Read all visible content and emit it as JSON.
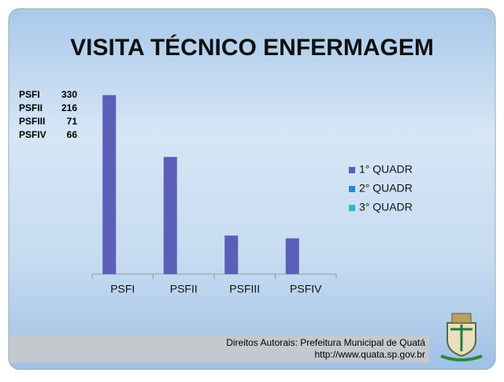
{
  "chart_data": {
    "type": "bar",
    "title": "VISITA TÉCNICO ENFERMAGEM",
    "categories": [
      "PSFI",
      "PSFII",
      "PSFIII",
      "PSFIV"
    ],
    "series": [
      {
        "name": "1° QUADR",
        "color": "#5b5fb8",
        "values": [
          330,
          216,
          71,
          66
        ]
      },
      {
        "name": "2° QUADR",
        "color": "#2f86d2",
        "values": [
          null,
          null,
          null,
          null
        ]
      },
      {
        "name": "3° QUADR",
        "color": "#2bb6d4",
        "values": [
          null,
          null,
          null,
          null
        ]
      }
    ],
    "ylim": [
      0,
      350
    ],
    "legend": "right"
  },
  "footer": {
    "copyright": "Direitos Autorais: Prefeitura Municipal de Quatá",
    "url": "http://www.quata.sp.gov.br"
  }
}
